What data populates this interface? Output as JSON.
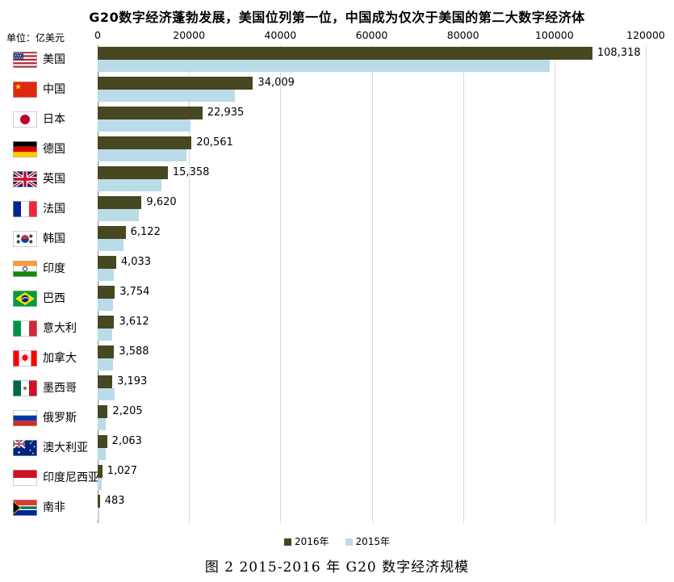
{
  "title": "G20数字经济蓬勃发展，美国位列第一位，中国成为仅次于美国的第二大数字经济体",
  "unit_label": "单位：亿美元",
  "caption": "图 2    2015-2016 年 G20 数字经济规模",
  "colors": {
    "bar_2016": "#474721",
    "bar_2015": "#b9dce8",
    "gridline": "#d9d9d9",
    "zero_line": "#7f7f7f"
  },
  "legend": {
    "items": [
      {
        "label": "2016年",
        "color": "#474721"
      },
      {
        "label": "2015年",
        "color": "#b9dce8"
      }
    ]
  },
  "flags": [
    "us",
    "cn",
    "jp",
    "de",
    "gb",
    "fr",
    "kr",
    "in",
    "br",
    "it",
    "ca",
    "mx",
    "ru",
    "au",
    "id",
    "za"
  ],
  "chart_data": {
    "type": "bar",
    "orientation": "horizontal",
    "title": "2015-2016 年 G20 数字经济规模",
    "xlabel": "亿美元",
    "ylabel": "",
    "xlim": [
      0,
      120000
    ],
    "xticks": [
      0,
      20000,
      40000,
      60000,
      80000,
      100000,
      120000
    ],
    "grid": true,
    "legend_position": "bottom",
    "categories": [
      "美国",
      "中国",
      "日本",
      "德国",
      "英国",
      "法国",
      "韩国",
      "印度",
      "巴西",
      "意大利",
      "加拿大",
      "墨西哥",
      "俄罗斯",
      "澳大利亚",
      "印度尼西亚",
      "南非"
    ],
    "series": [
      {
        "name": "2016年",
        "color": "#474721",
        "values": [
          108318,
          34009,
          22935,
          20561,
          15358,
          9620,
          6122,
          4033,
          3754,
          3612,
          3588,
          3193,
          2205,
          2063,
          1027,
          483
        ]
      },
      {
        "name": "2015年",
        "color": "#b9dce8",
        "values": [
          99000,
          30000,
          20300,
          19400,
          14000,
          9000,
          5600,
          3500,
          3300,
          3250,
          3300,
          3700,
          1800,
          1750,
          800,
          420
        ]
      }
    ],
    "value_labels": [
      "108,318",
      "34,009",
      "22,935",
      "20,561",
      "15,358",
      "9,620",
      "6,122",
      "4,033",
      "3,754",
      "3,612",
      "3,588",
      "3,193",
      "2,205",
      "2,063",
      "1,027",
      "483"
    ]
  }
}
